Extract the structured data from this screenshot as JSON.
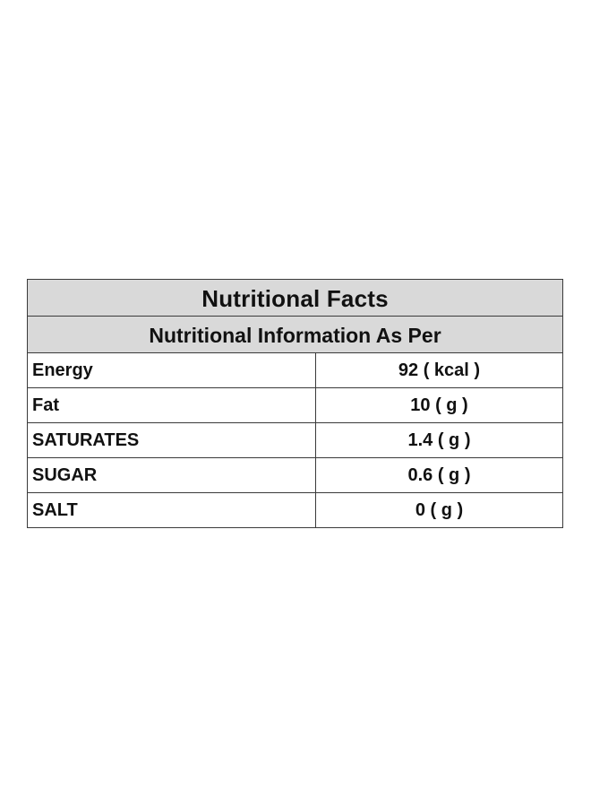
{
  "table": {
    "title": "Nutritional Facts",
    "subtitle": "Nutritional Information As Per",
    "rows": [
      {
        "name": "Energy",
        "value": "92 ( kcal )"
      },
      {
        "name": "Fat",
        "value": "10 ( g )"
      },
      {
        "name": "SATURATES",
        "value": "1.4 ( g )"
      },
      {
        "name": "SUGAR",
        "value": "0.6 ( g )"
      },
      {
        "name": "SALT",
        "value": "0 ( g )"
      }
    ]
  },
  "colors": {
    "header_background": "#d9d9d9",
    "border": "#3a3a3a",
    "text": "#111111"
  }
}
